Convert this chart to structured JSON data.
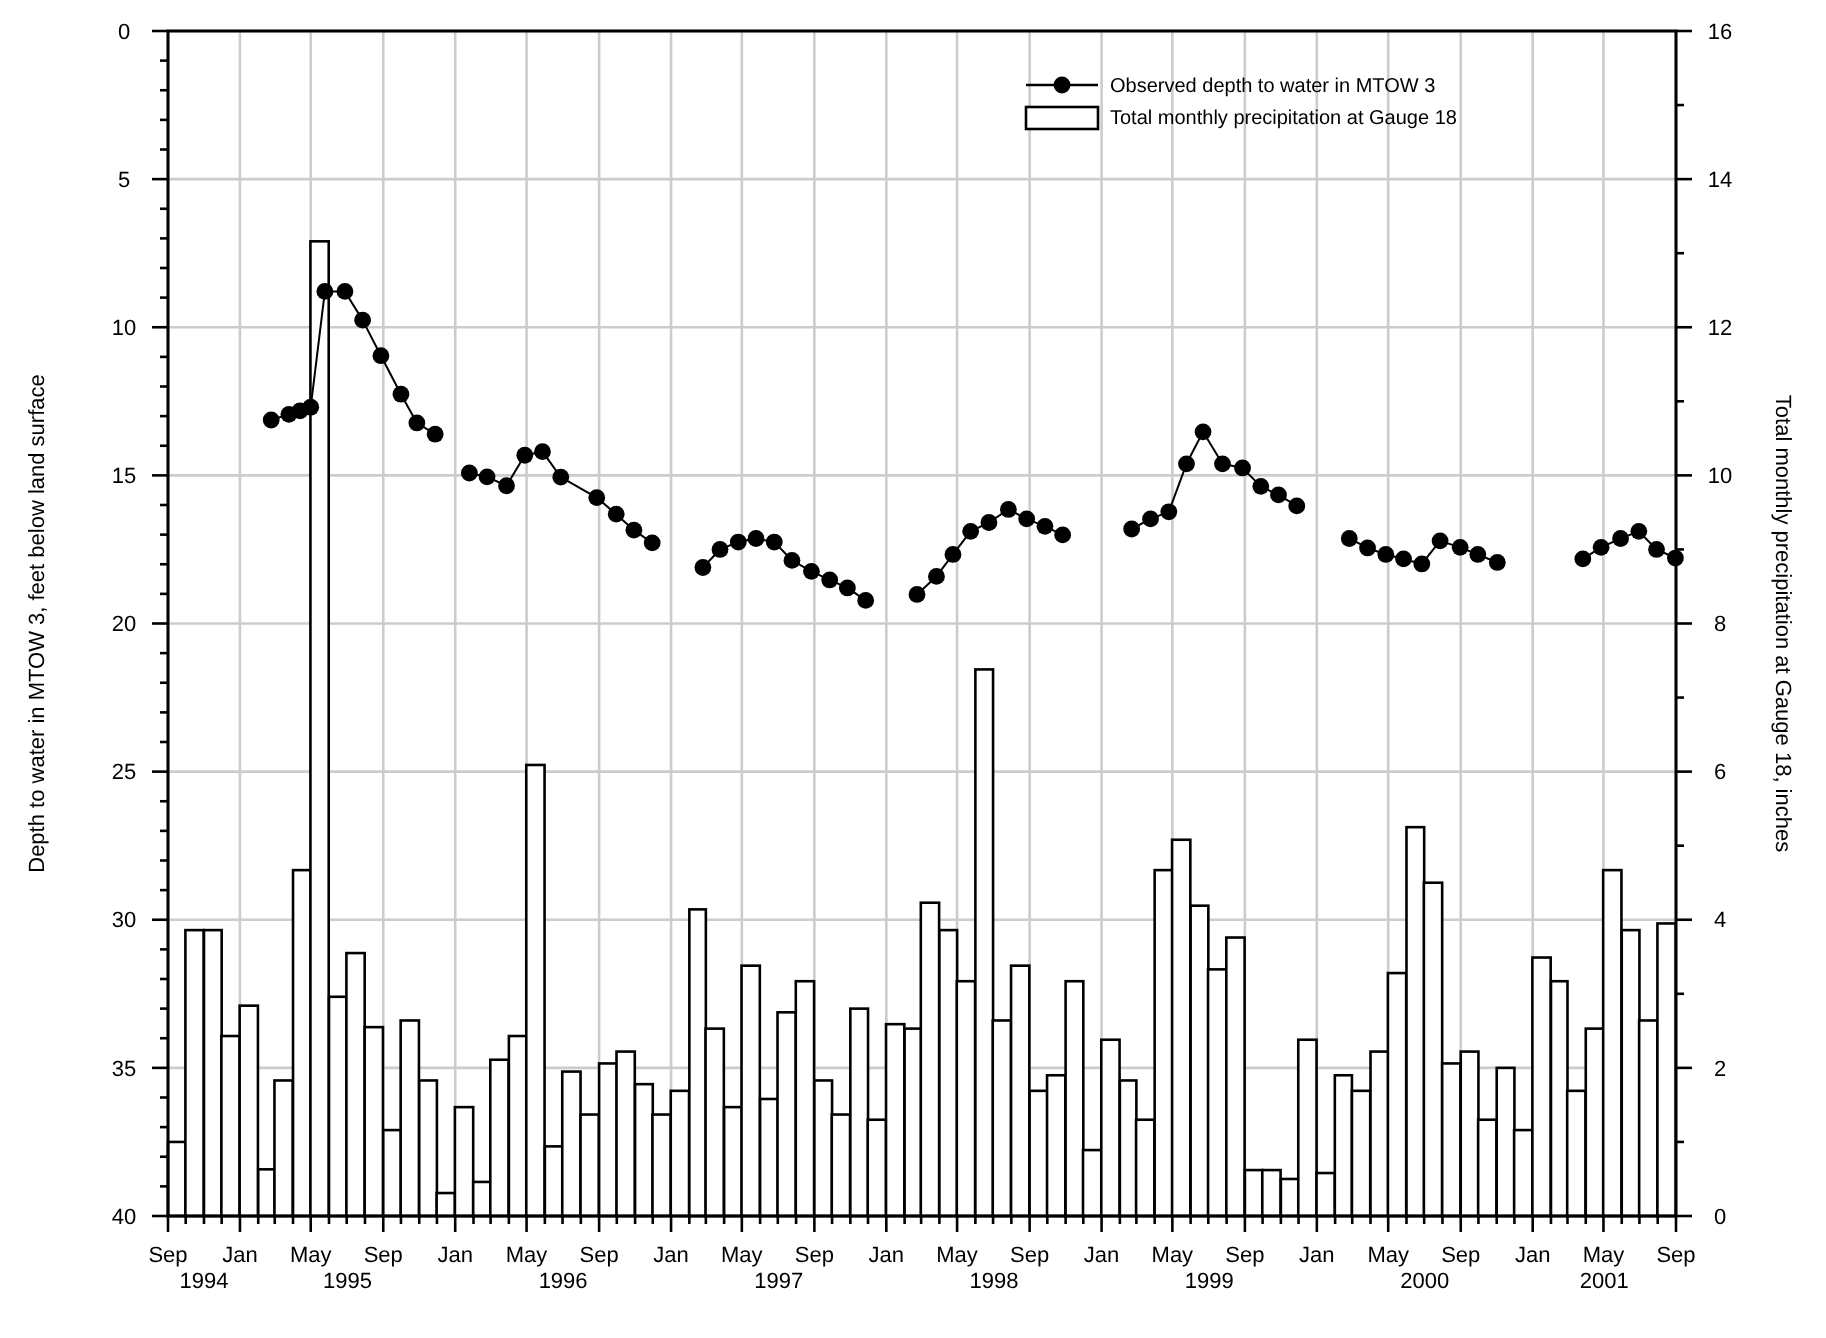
{
  "chart_data": {
    "type": "line",
    "xlabel": null,
    "ylabel": "Depth to water in MTOW 3, feet below land surface",
    "y2label": "Total monthly precipitation at Gauge 18, inches",
    "xlim": [
      "1994-09",
      "2001-09"
    ],
    "xticks": [
      {
        "value": "1994-09",
        "label": "Sep"
      },
      {
        "value": "1994-10",
        "label": null
      },
      {
        "value": "1994-11",
        "label": null
      },
      {
        "value": "1994-12",
        "label": null
      },
      {
        "value": "1995-01",
        "label": "Jan"
      },
      {
        "value": "1995-02",
        "label": null
      },
      {
        "value": "1995-03",
        "label": null
      },
      {
        "value": "1995-04",
        "label": null
      },
      {
        "value": "1995-05",
        "label": "May"
      },
      {
        "value": "1995-06",
        "label": null
      },
      {
        "value": "1995-07",
        "label": null
      },
      {
        "value": "1995-08",
        "label": null
      },
      {
        "value": "1995-09",
        "label": "Sep"
      },
      {
        "value": "1995-10",
        "label": null
      },
      {
        "value": "1995-11",
        "label": null
      },
      {
        "value": "1995-12",
        "label": null
      },
      {
        "value": "1996-01",
        "label": "Jan"
      },
      {
        "value": "1996-02",
        "label": null
      },
      {
        "value": "1996-03",
        "label": null
      },
      {
        "value": "1996-04",
        "label": null
      },
      {
        "value": "1996-05",
        "label": "May"
      },
      {
        "value": "1996-06",
        "label": null
      },
      {
        "value": "1996-07",
        "label": null
      },
      {
        "value": "1996-08",
        "label": null
      },
      {
        "value": "1996-09",
        "label": "Sep"
      },
      {
        "value": "1996-10",
        "label": null
      },
      {
        "value": "1996-11",
        "label": null
      },
      {
        "value": "1996-12",
        "label": null
      },
      {
        "value": "1997-01",
        "label": "Jan"
      },
      {
        "value": "1997-02",
        "label": null
      },
      {
        "value": "1997-03",
        "label": null
      },
      {
        "value": "1997-04",
        "label": null
      },
      {
        "value": "1997-05",
        "label": "May"
      },
      {
        "value": "1997-06",
        "label": null
      },
      {
        "value": "1997-07",
        "label": null
      },
      {
        "value": "1997-08",
        "label": null
      },
      {
        "value": "1997-09",
        "label": "Sep"
      },
      {
        "value": "1997-10",
        "label": null
      },
      {
        "value": "1997-11",
        "label": null
      },
      {
        "value": "1997-12",
        "label": null
      },
      {
        "value": "1998-01",
        "label": "Jan"
      },
      {
        "value": "1998-02",
        "label": null
      },
      {
        "value": "1998-03",
        "label": null
      },
      {
        "value": "1998-04",
        "label": null
      },
      {
        "value": "1998-05",
        "label": "May"
      },
      {
        "value": "1998-06",
        "label": null
      },
      {
        "value": "1998-07",
        "label": null
      },
      {
        "value": "1998-08",
        "label": null
      },
      {
        "value": "1998-09",
        "label": "Sep"
      },
      {
        "value": "1998-10",
        "label": null
      },
      {
        "value": "1998-11",
        "label": null
      },
      {
        "value": "1998-12",
        "label": null
      },
      {
        "value": "1999-01",
        "label": "Jan"
      },
      {
        "value": "1999-02",
        "label": null
      },
      {
        "value": "1999-03",
        "label": null
      },
      {
        "value": "1999-04",
        "label": null
      },
      {
        "value": "1999-05",
        "label": "May"
      },
      {
        "value": "1999-06",
        "label": null
      },
      {
        "value": "1999-07",
        "label": null
      },
      {
        "value": "1999-08",
        "label": null
      },
      {
        "value": "1999-09",
        "label": "Sep"
      },
      {
        "value": "1999-10",
        "label": null
      },
      {
        "value": "1999-11",
        "label": null
      },
      {
        "value": "1999-12",
        "label": null
      },
      {
        "value": "2000-01",
        "label": "Jan"
      },
      {
        "value": "2000-02",
        "label": null
      },
      {
        "value": "2000-03",
        "label": null
      },
      {
        "value": "2000-04",
        "label": null
      },
      {
        "value": "2000-05",
        "label": "May"
      },
      {
        "value": "2000-06",
        "label": null
      },
      {
        "value": "2000-07",
        "label": null
      },
      {
        "value": "2000-08",
        "label": null
      },
      {
        "value": "2000-09",
        "label": "Sep"
      },
      {
        "value": "2000-10",
        "label": null
      },
      {
        "value": "2000-11",
        "label": null
      },
      {
        "value": "2000-12",
        "label": null
      },
      {
        "value": "2001-01",
        "label": "Jan"
      },
      {
        "value": "2001-02",
        "label": null
      },
      {
        "value": "2001-03",
        "label": null
      },
      {
        "value": "2001-04",
        "label": null
      },
      {
        "value": "2001-05",
        "label": "May"
      },
      {
        "value": "2001-06",
        "label": null
      },
      {
        "value": "2001-07",
        "label": null
      },
      {
        "value": "2001-08",
        "label": null
      },
      {
        "value": "2001-09",
        "label": "Sep"
      }
    ],
    "annotations": [
      "1994",
      "1995",
      "1996",
      "1997",
      "1998",
      "1999",
      "2000",
      "2001"
    ],
    "ylim": [
      40,
      0
    ],
    "yticks": [
      0,
      {
        "value": 1,
        "label": null
      },
      {
        "value": 2,
        "label": null
      },
      {
        "value": 3,
        "label": null
      },
      {
        "value": 4,
        "label": null
      },
      5,
      {
        "value": 6,
        "label": null
      },
      {
        "value": 7,
        "label": null
      },
      {
        "value": 8,
        "label": null
      },
      {
        "value": 9,
        "label": null
      },
      10,
      {
        "value": 11,
        "label": null
      },
      {
        "value": 12,
        "label": null
      },
      {
        "value": 13,
        "label": null
      },
      {
        "value": 14,
        "label": null
      },
      15,
      {
        "value": 16,
        "label": null
      },
      {
        "value": 17,
        "label": null
      },
      {
        "value": 18,
        "label": null
      },
      {
        "value": 19,
        "label": null
      },
      20,
      {
        "value": 21,
        "label": null
      },
      {
        "value": 22,
        "label": null
      },
      {
        "value": 23,
        "label": null
      },
      {
        "value": 24,
        "label": null
      },
      25,
      {
        "value": 26,
        "label": null
      },
      {
        "value": 27,
        "label": null
      },
      {
        "value": 28,
        "label": null
      },
      {
        "value": 29,
        "label": null
      },
      30,
      {
        "value": 31,
        "label": null
      },
      {
        "value": 32,
        "label": null
      },
      {
        "value": 33,
        "label": null
      },
      {
        "value": 34,
        "label": null
      },
      35,
      {
        "value": 36,
        "label": null
      },
      {
        "value": 37,
        "label": null
      },
      {
        "value": 38,
        "label": null
      },
      {
        "value": 39,
        "label": null
      },
      40
    ],
    "y2lim": [
      0,
      16
    ],
    "y2ticks": [
      0,
      {
        "value": 1,
        "label": null
      },
      2,
      {
        "value": 3,
        "label": null
      },
      4,
      {
        "value": 5,
        "label": null
      },
      6,
      {
        "value": 7,
        "label": null
      },
      8,
      {
        "value": 9,
        "label": null
      },
      10,
      {
        "value": 11,
        "label": null
      },
      12,
      {
        "value": 13,
        "label": null
      },
      14,
      {
        "value": 15,
        "label": null
      },
      16
    ],
    "grid": true,
    "legend": "top right",
    "marker": "circle",
    "line_style": "solid",
    "series": [
      {
        "name": "Observed depth to water in MTOW 3",
        "color": "#000000",
        "x": [
          "1995-02-23",
          "1995-03-25",
          "1995-04-13",
          "1995-05-01",
          "1995-05-25",
          "1995-06-28",
          "1995-07-28",
          "1995-08-28",
          "1995-10-01",
          "1995-10-28",
          "1995-11-28",
          "1995-12-28",
          "1996-01-25",
          "1996-02-24",
          "1996-03-28",
          "1996-04-28",
          "1996-05-28",
          "1996-06-28",
          "1996-08-28",
          "1996-09-30",
          "1996-10-30",
          "1996-11-30",
          "1997-01-10",
          "1997-02-24",
          "1997-03-25",
          "1997-04-25",
          "1997-05-25",
          "1997-06-25",
          "1997-07-25",
          "1997-08-27",
          "1997-09-27",
          "1997-10-27",
          "1997-11-27",
          "1998-01-10",
          "1998-02-22",
          "1998-03-27",
          "1998-04-24",
          "1998-05-24",
          "1998-06-24",
          "1998-07-27",
          "1998-08-27",
          "1998-09-27",
          "1998-10-27",
          "1999-01-10",
          "1999-02-21",
          "1999-03-25",
          "1999-04-25",
          "1999-05-25",
          "1999-06-22",
          "1999-07-25",
          "1999-08-28",
          "1999-09-28",
          "1999-10-28",
          "1999-11-28",
          "2000-01-10",
          "2000-02-25",
          "2000-03-27",
          "2000-04-27",
          "2000-05-27",
          "2000-06-27",
          "2000-07-28",
          "2000-08-31",
          "2000-09-30",
          "2000-11-02",
          "2001-01-10",
          "2001-03-27",
          "2001-04-27",
          "2001-05-30",
          "2001-06-30",
          "2001-07-30",
          "2001-08-31"
        ],
        "values": [
          13.13,
          12.94,
          12.82,
          12.7,
          8.79,
          8.79,
          9.76,
          10.96,
          12.26,
          13.23,
          13.61,
          null,
          14.92,
          15.05,
          15.35,
          14.32,
          14.2,
          15.06,
          15.75,
          16.31,
          16.85,
          17.28,
          null,
          18.11,
          17.5,
          17.25,
          17.13,
          17.25,
          17.87,
          18.24,
          18.53,
          18.8,
          19.22,
          null,
          19.02,
          18.41,
          17.67,
          16.89,
          16.59,
          16.15,
          16.47,
          16.72,
          17.01,
          null,
          16.81,
          16.47,
          16.23,
          14.61,
          13.53,
          14.61,
          14.75,
          15.37,
          15.66,
          16.03,
          null,
          17.13,
          17.45,
          17.67,
          17.82,
          17.99,
          17.21,
          17.43,
          17.67,
          17.94,
          null,
          17.82,
          17.43,
          17.13,
          16.89,
          17.5,
          17.79
        ]
      },
      {
        "name": "Total monthly precipitation at Gauge 18",
        "type": "bar",
        "axis": "y2",
        "color": "#ffffff",
        "x": [
          "1994-09-16",
          "1994-10-16",
          "1994-11-16",
          "1994-12-16",
          "1995-01-16",
          "1995-02-15",
          "1995-03-16",
          "1995-04-16",
          "1995-05-16",
          "1995-06-16",
          "1995-07-16",
          "1995-08-16",
          "1995-09-16",
          "1995-10-16",
          "1995-11-16",
          "1995-12-16",
          "1996-01-16",
          "1996-02-15",
          "1996-03-16",
          "1996-04-16",
          "1996-05-16",
          "1996-06-16",
          "1996-07-16",
          "1996-08-16",
          "1996-09-16",
          "1996-10-16",
          "1996-11-16",
          "1996-12-16",
          "1997-01-16",
          "1997-02-15",
          "1997-03-16",
          "1997-04-16",
          "1997-05-16",
          "1997-06-16",
          "1997-07-16",
          "1997-08-16",
          "1997-09-16",
          "1997-10-16",
          "1997-11-16",
          "1997-12-16",
          "1998-01-16",
          "1998-02-15",
          "1998-03-16",
          "1998-04-16",
          "1998-05-16",
          "1998-06-16",
          "1998-07-16",
          "1998-08-16",
          "1998-09-16",
          "1998-10-16",
          "1998-11-16",
          "1998-12-16",
          "1999-01-16",
          "1999-02-15",
          "1999-03-16",
          "1999-04-16",
          "1999-05-16",
          "1999-06-16",
          "1999-07-16",
          "1999-08-16",
          "1999-09-16",
          "1999-10-16",
          "1999-11-16",
          "1999-12-16",
          "2000-01-16",
          "2000-02-15",
          "2000-03-16",
          "2000-04-16",
          "2000-05-16",
          "2000-06-16",
          "2000-07-16",
          "2000-08-16",
          "2000-09-16",
          "2000-10-16",
          "2000-11-16",
          "2000-12-16",
          "2001-01-16",
          "2001-02-15",
          "2001-03-16",
          "2001-04-16",
          "2001-05-16",
          "2001-06-16",
          "2001-07-16",
          "2001-08-16"
        ],
        "values": [
          1.0,
          3.86,
          3.86,
          2.43,
          2.84,
          0.63,
          1.83,
          4.67,
          13.16,
          2.96,
          3.55,
          2.55,
          1.16,
          2.64,
          1.83,
          0.31,
          1.47,
          0.46,
          2.11,
          2.43,
          6.09,
          0.94,
          1.95,
          1.37,
          2.06,
          2.22,
          1.78,
          1.37,
          1.69,
          4.14,
          2.53,
          1.47,
          3.38,
          1.58,
          2.75,
          3.17,
          1.83,
          1.37,
          2.8,
          1.3,
          2.59,
          2.53,
          4.23,
          3.86,
          3.17,
          7.38,
          2.64,
          3.38,
          1.69,
          1.9,
          3.17,
          0.89,
          2.38,
          1.83,
          1.3,
          4.67,
          5.08,
          4.19,
          3.33,
          3.76,
          0.62,
          0.62,
          0.5,
          2.38,
          0.58,
          1.9,
          1.69,
          2.22,
          3.28,
          5.25,
          4.5,
          2.06,
          2.22,
          1.3,
          2.0,
          1.16,
          3.49,
          3.17,
          1.69,
          2.53,
          4.67,
          3.86,
          2.64,
          3.95
        ]
      }
    ]
  }
}
